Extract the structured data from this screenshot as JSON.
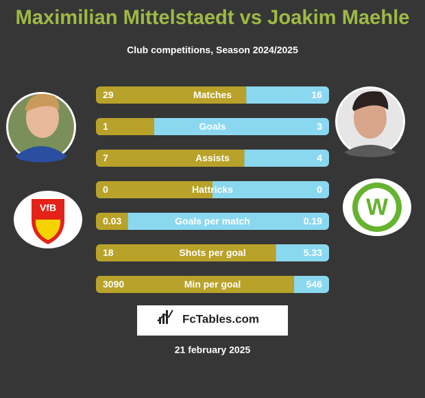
{
  "chart_data": {
    "type": "comparison",
    "title": "Maximilian Mittelstaedt vs Joakim Maehle",
    "subtitle": "Club competitions, Season 2024/2025",
    "categories": [
      "Matches",
      "Goals",
      "Assists",
      "Hattricks",
      "Goals per match",
      "Shots per goal",
      "Min per goal"
    ],
    "series": [
      {
        "color": "#b8a229",
        "values": [
          29,
          1,
          7,
          0,
          0.03,
          18,
          3090
        ]
      },
      {
        "color": "#8ad8f0",
        "values": [
          16,
          3,
          4,
          0,
          0.19,
          5.33,
          546
        ]
      }
    ],
    "brand": "FcTables.com",
    "date": "21 february 2025"
  }
}
